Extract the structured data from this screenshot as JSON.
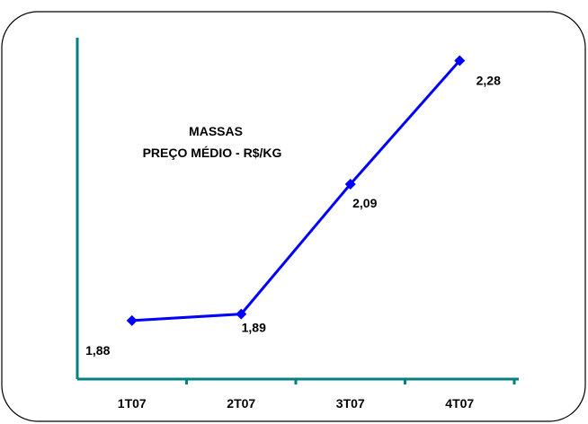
{
  "colors": {
    "line": "#0000FF",
    "axis": "#008080",
    "border": "#000000",
    "background": "#FFFFFF"
  },
  "chart_data": {
    "type": "line",
    "title": "MASSAS",
    "subtitle": "PREÇO MÉDIO - R$/KG",
    "categories": [
      "1T07",
      "2T07",
      "3T07",
      "4T07"
    ],
    "series": [
      {
        "values": [
          1.88,
          1.89,
          2.09,
          2.28
        ]
      }
    ],
    "data_labels": [
      "1,88",
      "1,89",
      "2,09",
      "2,28"
    ],
    "marker": "diamond",
    "grid": false,
    "legend": "none"
  }
}
